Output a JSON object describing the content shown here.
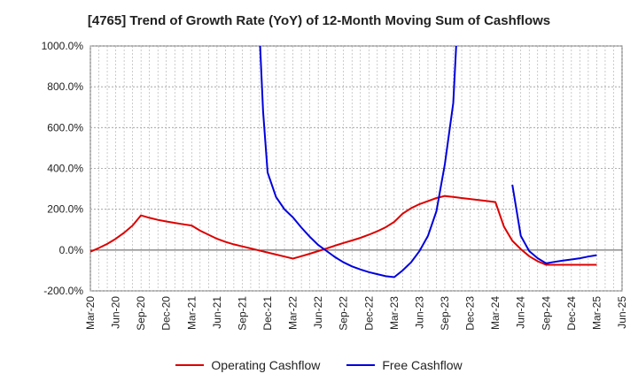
{
  "chart_data": {
    "type": "line",
    "title": "[4765]  Trend of Growth Rate (YoY) of 12-Month Moving Sum of Cashflows",
    "ylim": [
      -200,
      1000
    ],
    "yticks": [
      -200,
      0,
      200,
      400,
      600,
      800,
      1000
    ],
    "ytick_labels": [
      "-200.0%",
      "0.0%",
      "200.0%",
      "400.0%",
      "600.0%",
      "800.0%",
      "1000.0%"
    ],
    "x_range": [
      "Mar-20",
      "Jun-25"
    ],
    "xtick_labels": [
      "Mar-20",
      "Jun-20",
      "Sep-20",
      "Dec-20",
      "Mar-21",
      "Jun-21",
      "Sep-21",
      "Dec-21",
      "Mar-22",
      "Jun-22",
      "Sep-22",
      "Dec-22",
      "Mar-23",
      "Jun-23",
      "Sep-23",
      "Dec-23",
      "Mar-24",
      "Jun-24",
      "Sep-24",
      "Dec-24",
      "Mar-25",
      "Jun-25"
    ],
    "grid": true,
    "legend_position": "bottom",
    "series": [
      {
        "name": "Operating Cashflow",
        "color": "#dd0000",
        "points": [
          [
            "2020-03",
            -8
          ],
          [
            "2020-04",
            10
          ],
          [
            "2020-05",
            30
          ],
          [
            "2020-06",
            55
          ],
          [
            "2020-07",
            85
          ],
          [
            "2020-08",
            120
          ],
          [
            "2020-09",
            170
          ],
          [
            "2020-10",
            158
          ],
          [
            "2020-11",
            148
          ],
          [
            "2020-12",
            140
          ],
          [
            "2021-01",
            133
          ],
          [
            "2021-02",
            126
          ],
          [
            "2021-03",
            120
          ],
          [
            "2021-04",
            95
          ],
          [
            "2021-05",
            75
          ],
          [
            "2021-06",
            55
          ],
          [
            "2021-07",
            40
          ],
          [
            "2021-08",
            28
          ],
          [
            "2021-09",
            18
          ],
          [
            "2021-10",
            8
          ],
          [
            "2021-11",
            -2
          ],
          [
            "2021-12",
            -12
          ],
          [
            "2022-01",
            -22
          ],
          [
            "2022-02",
            -32
          ],
          [
            "2022-03",
            -42
          ],
          [
            "2022-04",
            -30
          ],
          [
            "2022-05",
            -18
          ],
          [
            "2022-06",
            -5
          ],
          [
            "2022-07",
            8
          ],
          [
            "2022-08",
            22
          ],
          [
            "2022-09",
            35
          ],
          [
            "2022-10",
            47
          ],
          [
            "2022-11",
            60
          ],
          [
            "2022-12",
            75
          ],
          [
            "2023-01",
            92
          ],
          [
            "2023-02",
            112
          ],
          [
            "2023-03",
            138
          ],
          [
            "2023-04",
            178
          ],
          [
            "2023-05",
            205
          ],
          [
            "2023-06",
            225
          ],
          [
            "2023-07",
            240
          ],
          [
            "2023-08",
            255
          ],
          [
            "2023-09",
            265
          ],
          [
            "2023-10",
            260
          ],
          [
            "2023-11",
            255
          ],
          [
            "2023-12",
            250
          ],
          [
            "2024-01",
            245
          ],
          [
            "2024-02",
            240
          ],
          [
            "2024-03",
            235
          ],
          [
            "2024-04",
            115
          ],
          [
            "2024-05",
            45
          ],
          [
            "2024-06",
            5
          ],
          [
            "2024-07",
            -30
          ],
          [
            "2024-08",
            -55
          ],
          [
            "2024-09",
            -72
          ],
          [
            "2024-10",
            -72
          ],
          [
            "2024-11",
            -72
          ],
          [
            "2024-12",
            -72
          ],
          [
            "2025-01",
            -72
          ],
          [
            "2025-02",
            -72
          ],
          [
            "2025-03",
            -72
          ]
        ]
      },
      {
        "name": "Free Cashflow",
        "color": "#0000dd",
        "segments": [
          [
            [
              "2021-11",
              1100
            ],
            [
              "2021-11-15",
              680
            ],
            [
              "2021-12",
              380
            ],
            [
              "2022-01",
              260
            ],
            [
              "2022-02",
              200
            ],
            [
              "2022-03",
              160
            ],
            [
              "2022-04",
              110
            ],
            [
              "2022-05",
              65
            ],
            [
              "2022-06",
              25
            ],
            [
              "2022-07",
              -5
            ],
            [
              "2022-08",
              -35
            ],
            [
              "2022-09",
              -60
            ],
            [
              "2022-10",
              -80
            ],
            [
              "2022-11",
              -95
            ],
            [
              "2022-12",
              -108
            ],
            [
              "2023-01",
              -118
            ],
            [
              "2023-02",
              -128
            ],
            [
              "2023-03",
              -133
            ],
            [
              "2023-04",
              -100
            ],
            [
              "2023-05",
              -60
            ],
            [
              "2023-06",
              -5
            ],
            [
              "2023-07",
              70
            ],
            [
              "2023-08",
              190
            ],
            [
              "2023-09",
              420
            ],
            [
              "2023-10",
              720
            ],
            [
              "2023-10-15",
              1100
            ]
          ],
          [
            [
              "2024-05",
              320
            ],
            [
              "2024-06",
              70
            ],
            [
              "2024-07",
              -5
            ],
            [
              "2024-08",
              -40
            ],
            [
              "2024-09",
              -65
            ],
            [
              "2024-10",
              -58
            ],
            [
              "2024-11",
              -52
            ],
            [
              "2024-12",
              -46
            ],
            [
              "2025-01",
              -40
            ],
            [
              "2025-02",
              -32
            ],
            [
              "2025-03",
              -25
            ]
          ]
        ]
      }
    ]
  }
}
